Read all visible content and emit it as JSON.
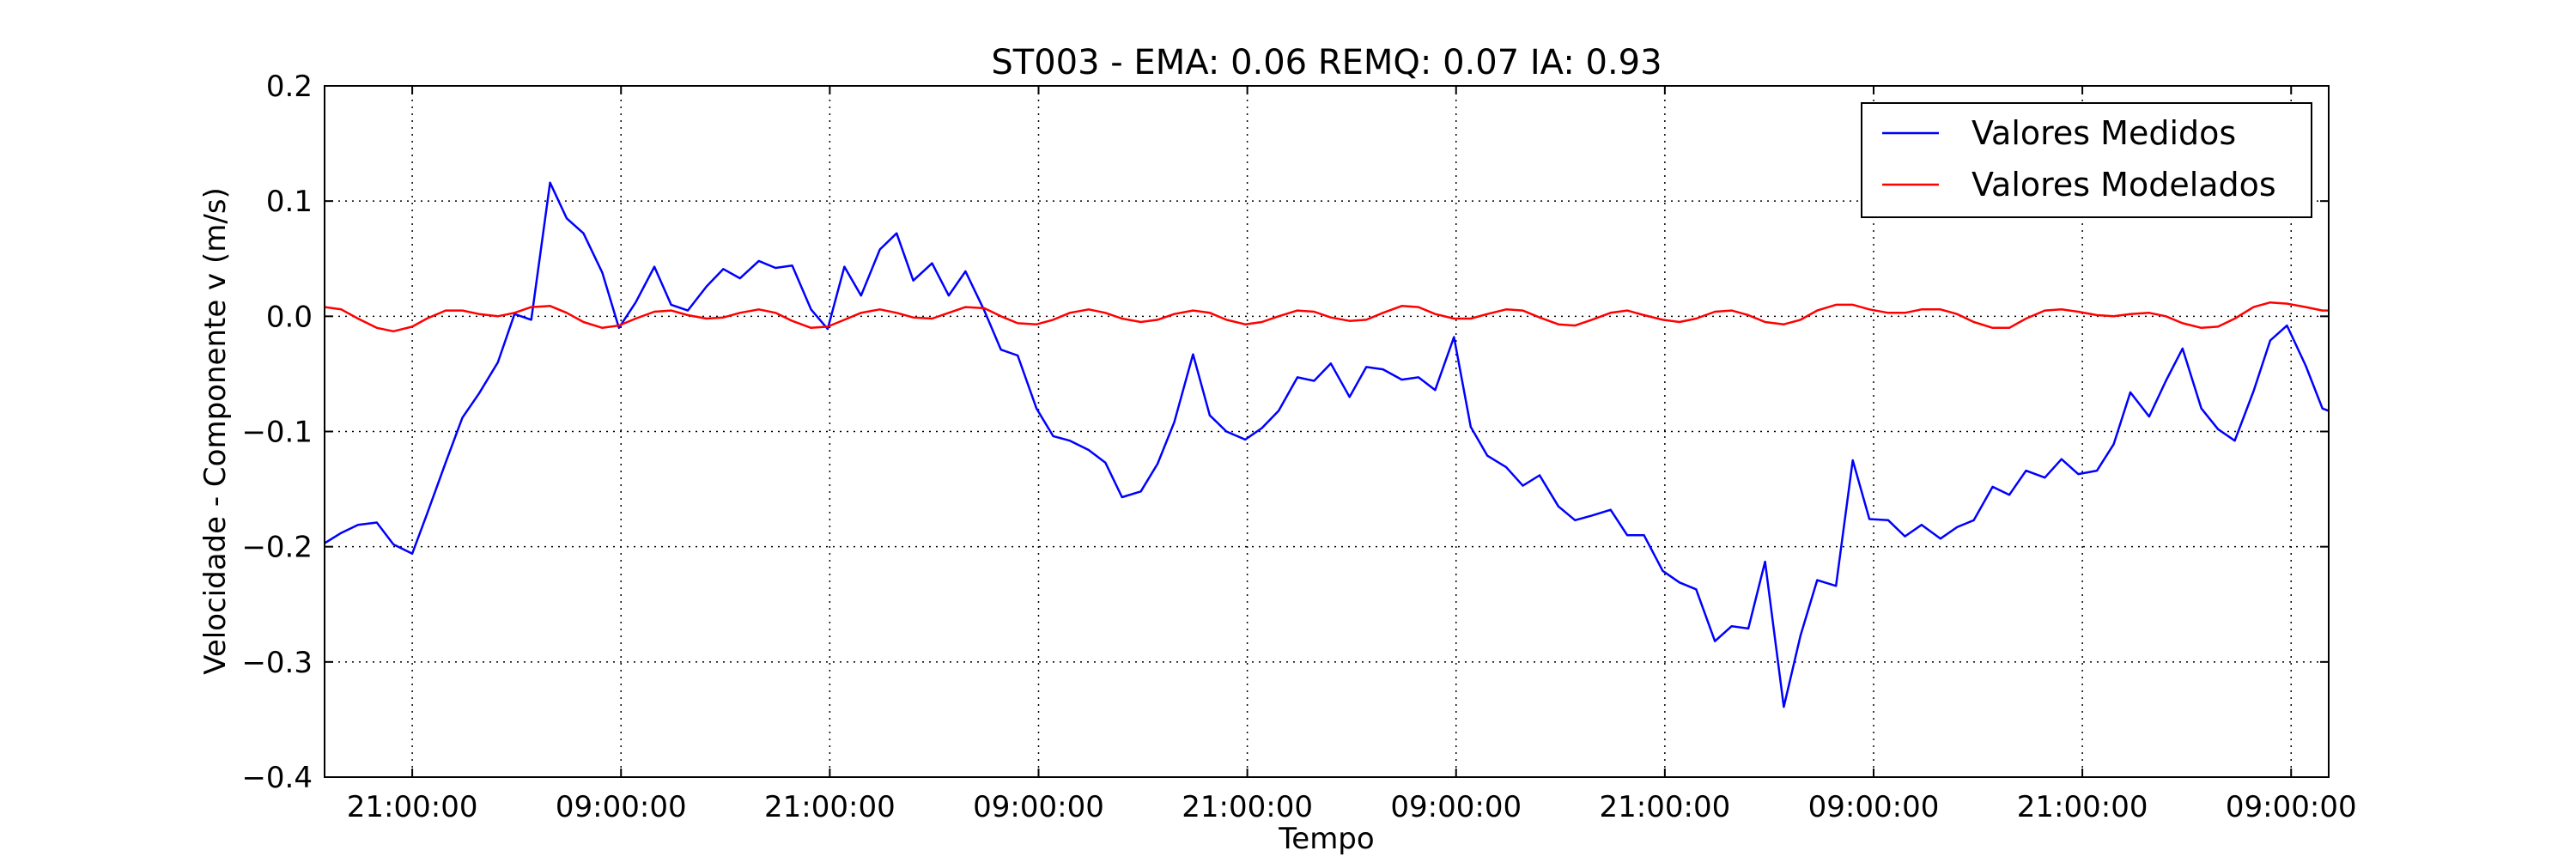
{
  "chart_data": {
    "type": "line",
    "title": "ST003 - EMA: 0.06  REMQ: 0.07  IA: 0.93",
    "xlabel": "Tempo",
    "ylabel": "Velocidade - Componente v (m/s)",
    "ylim": [
      -0.4,
      0.2
    ],
    "yticks": [
      -0.4,
      -0.3,
      -0.2,
      -0.1,
      0.0,
      0.1,
      0.2
    ],
    "ytick_labels": [
      "−0.4",
      "−0.3",
      "−0.2",
      "−0.1",
      "0.0",
      "0.1",
      "0.2"
    ],
    "xlim": [
      0,
      4.8
    ],
    "xticks": [
      0.21,
      0.71,
      1.21,
      1.71,
      2.21,
      2.71,
      3.21,
      3.71,
      4.21,
      4.71
    ],
    "xtick_labels": [
      "21:00:00",
      "09:00:00",
      "21:00:00",
      "09:00:00",
      "21:00:00",
      "09:00:00",
      "21:00:00",
      "09:00:00",
      "21:00:00",
      "09:00:00"
    ],
    "grid": true,
    "legend_position": "top-right",
    "series": [
      {
        "name": "Valores Medidos",
        "color": "#0000ff",
        "x": [
          0,
          0.04,
          0.08,
          0.125,
          0.165,
          0.21,
          0.245,
          0.29,
          0.33,
          0.37,
          0.415,
          0.455,
          0.495,
          0.54,
          0.58,
          0.62,
          0.665,
          0.705,
          0.745,
          0.79,
          0.83,
          0.87,
          0.915,
          0.955,
          0.995,
          1.04,
          1.08,
          1.12,
          1.165,
          1.205,
          1.245,
          1.285,
          1.33,
          1.37,
          1.41,
          1.455,
          1.495,
          1.535,
          1.58,
          1.62,
          1.66,
          1.705,
          1.745,
          1.785,
          1.83,
          1.87,
          1.91,
          1.955,
          1.995,
          2.035,
          2.08,
          2.12,
          2.16,
          2.205,
          2.245,
          2.285,
          2.33,
          2.37,
          2.41,
          2.455,
          2.495,
          2.535,
          2.58,
          2.62,
          2.66,
          2.705,
          2.745,
          2.785,
          2.83,
          2.87,
          2.91,
          2.955,
          2.995,
          3.035,
          3.08,
          3.12,
          3.16,
          3.205,
          3.245,
          3.285,
          3.33,
          3.37,
          3.41,
          3.45,
          3.495,
          3.535,
          3.575,
          3.62,
          3.66,
          3.7,
          3.745,
          3.785,
          3.825,
          3.87,
          3.91,
          3.95,
          3.995,
          4.035,
          4.075,
          4.12,
          4.16,
          4.2,
          4.245,
          4.285,
          4.325,
          4.37,
          4.41,
          4.45,
          4.495,
          4.535,
          4.575,
          4.62,
          4.66,
          4.7,
          4.745,
          4.785,
          4.8
        ],
        "values": [
          -0.197,
          -0.188,
          -0.181,
          -0.179,
          -0.198,
          -0.206,
          -0.172,
          -0.127,
          -0.088,
          -0.067,
          -0.04,
          0.002,
          -0.003,
          0.116,
          0.085,
          0.072,
          0.038,
          -0.01,
          0.012,
          0.043,
          0.01,
          0.005,
          0.026,
          0.041,
          0.033,
          0.048,
          0.042,
          0.044,
          0.006,
          -0.011,
          0.043,
          0.018,
          0.058,
          0.072,
          0.031,
          0.046,
          0.018,
          0.039,
          0.005,
          -0.029,
          -0.034,
          -0.08,
          -0.104,
          -0.108,
          -0.116,
          -0.127,
          -0.157,
          -0.152,
          -0.128,
          -0.092,
          -0.033,
          -0.086,
          -0.1,
          -0.107,
          -0.097,
          -0.082,
          -0.053,
          -0.056,
          -0.041,
          -0.07,
          -0.044,
          -0.046,
          -0.055,
          -0.053,
          -0.064,
          -0.018,
          -0.096,
          -0.121,
          -0.131,
          -0.147,
          -0.138,
          -0.165,
          -0.177,
          -0.173,
          -0.168,
          -0.19,
          -0.19,
          -0.221,
          -0.231,
          -0.237,
          -0.282,
          -0.269,
          -0.271,
          -0.213,
          -0.339,
          -0.277,
          -0.229,
          -0.234,
          -0.125,
          -0.176,
          -0.177,
          -0.191,
          -0.181,
          -0.193,
          -0.183,
          -0.177,
          -0.148,
          -0.155,
          -0.134,
          -0.14,
          -0.124,
          -0.137,
          -0.134,
          -0.111,
          -0.066,
          -0.087,
          -0.056,
          -0.028,
          -0.08,
          -0.098,
          -0.108,
          -0.065,
          -0.021,
          -0.008,
          -0.043,
          -0.08,
          -0.082
        ]
      },
      {
        "name": "Valores Modelados",
        "color": "#ff0000",
        "x": [
          0,
          0.04,
          0.08,
          0.125,
          0.165,
          0.21,
          0.245,
          0.29,
          0.33,
          0.37,
          0.415,
          0.455,
          0.495,
          0.54,
          0.58,
          0.62,
          0.665,
          0.705,
          0.745,
          0.79,
          0.83,
          0.87,
          0.915,
          0.955,
          0.995,
          1.04,
          1.08,
          1.12,
          1.165,
          1.205,
          1.245,
          1.285,
          1.33,
          1.37,
          1.41,
          1.455,
          1.495,
          1.535,
          1.58,
          1.62,
          1.66,
          1.705,
          1.745,
          1.785,
          1.83,
          1.87,
          1.91,
          1.955,
          1.995,
          2.035,
          2.08,
          2.12,
          2.16,
          2.205,
          2.245,
          2.285,
          2.33,
          2.37,
          2.41,
          2.455,
          2.495,
          2.535,
          2.58,
          2.62,
          2.66,
          2.705,
          2.745,
          2.785,
          2.83,
          2.87,
          2.91,
          2.955,
          2.995,
          3.035,
          3.08,
          3.12,
          3.16,
          3.205,
          3.245,
          3.285,
          3.33,
          3.37,
          3.41,
          3.45,
          3.495,
          3.535,
          3.575,
          3.62,
          3.66,
          3.7,
          3.745,
          3.785,
          3.825,
          3.87,
          3.91,
          3.95,
          3.995,
          4.035,
          4.075,
          4.12,
          4.16,
          4.2,
          4.245,
          4.285,
          4.325,
          4.37,
          4.41,
          4.45,
          4.495,
          4.535,
          4.575,
          4.62,
          4.66,
          4.7,
          4.745,
          4.785,
          4.8
        ],
        "values": [
          0.008,
          0.006,
          -0.002,
          -0.01,
          -0.013,
          -0.009,
          -0.002,
          0.005,
          0.005,
          0.002,
          0.0,
          0.003,
          0.008,
          0.009,
          0.003,
          -0.005,
          -0.01,
          -0.008,
          -0.002,
          0.004,
          0.005,
          0.001,
          -0.002,
          -0.001,
          0.003,
          0.006,
          0.003,
          -0.004,
          -0.01,
          -0.009,
          -0.003,
          0.003,
          0.006,
          0.003,
          -0.001,
          -0.002,
          0.003,
          0.008,
          0.007,
          0.0,
          -0.006,
          -0.007,
          -0.003,
          0.003,
          0.006,
          0.003,
          -0.002,
          -0.005,
          -0.003,
          0.002,
          0.005,
          0.003,
          -0.003,
          -0.007,
          -0.005,
          0.0,
          0.005,
          0.004,
          -0.001,
          -0.004,
          -0.003,
          0.003,
          0.009,
          0.008,
          0.002,
          -0.002,
          -0.002,
          0.002,
          0.006,
          0.005,
          -0.001,
          -0.007,
          -0.008,
          -0.003,
          0.003,
          0.005,
          0.001,
          -0.003,
          -0.005,
          -0.002,
          0.004,
          0.005,
          0.001,
          -0.005,
          -0.007,
          -0.003,
          0.005,
          0.01,
          0.01,
          0.006,
          0.003,
          0.003,
          0.006,
          0.006,
          0.002,
          -0.005,
          -0.01,
          -0.01,
          -0.002,
          0.005,
          0.006,
          0.004,
          0.001,
          0.0,
          0.002,
          0.003,
          0.0,
          -0.006,
          -0.01,
          -0.009,
          -0.002,
          0.008,
          0.012,
          0.011,
          0.008,
          0.005,
          0.005
        ]
      }
    ]
  }
}
